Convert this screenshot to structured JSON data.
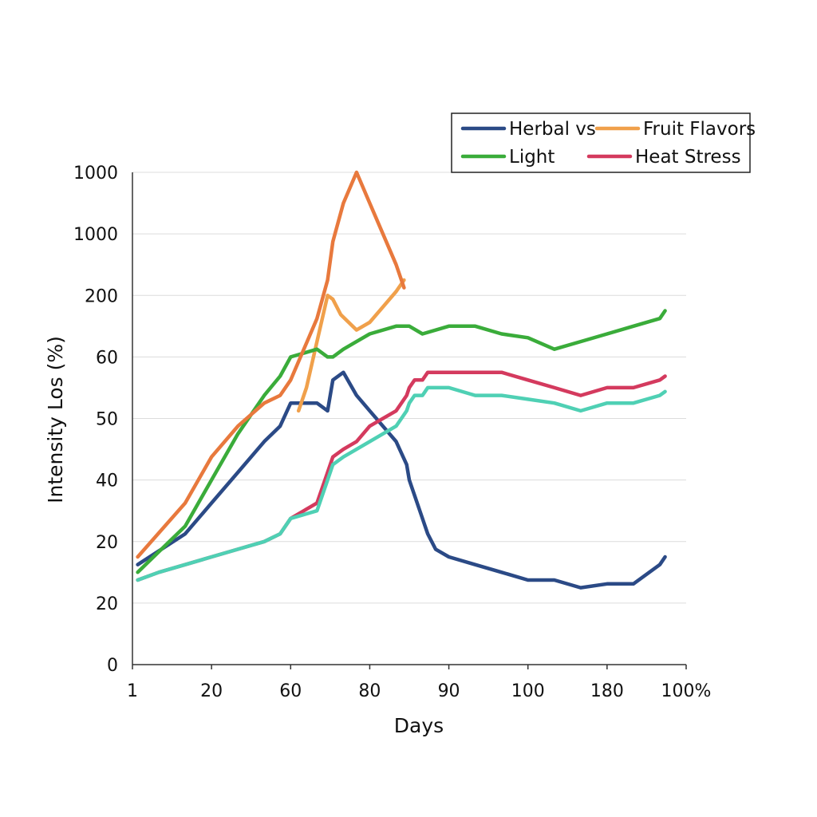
{
  "chart_data": {
    "type": "line",
    "title": "",
    "xlabel": "Days",
    "ylabel": "Intensity Los (%)",
    "x_ticks": [
      "1",
      "20",
      "60",
      "80",
      "90",
      "100",
      "180",
      "100%"
    ],
    "y_ticks": [
      "0",
      "20",
      "20",
      "40",
      "50",
      "60",
      "200",
      "1000",
      "1000"
    ],
    "grid": true,
    "legend_position": "top-right",
    "series": [
      {
        "name": "Herbal vs",
        "color": "#2b4a86",
        "points": [
          [
            0.2,
            13
          ],
          [
            2,
            17
          ],
          [
            3,
            21
          ],
          [
            4,
            25
          ],
          [
            5,
            29
          ],
          [
            5.6,
            31
          ],
          [
            6,
            34
          ],
          [
            7,
            34
          ],
          [
            7.4,
            33
          ],
          [
            7.6,
            37
          ],
          [
            8,
            38
          ],
          [
            8.5,
            35
          ],
          [
            9,
            33
          ],
          [
            10,
            29
          ],
          [
            10.4,
            26
          ],
          [
            10.5,
            24
          ],
          [
            10.7,
            22
          ],
          [
            10.9,
            20
          ],
          [
            11,
            19
          ],
          [
            11.1,
            18
          ],
          [
            11.2,
            17
          ],
          [
            11.5,
            15
          ],
          [
            12,
            14
          ],
          [
            13,
            13
          ],
          [
            14,
            12
          ],
          [
            15,
            11
          ],
          [
            16,
            11
          ],
          [
            17,
            10
          ],
          [
            18,
            10.5
          ],
          [
            19,
            10.5
          ],
          [
            20,
            13
          ],
          [
            20.2,
            14
          ]
        ]
      },
      {
        "name": "Fruit Flavors",
        "color": "#f0a04b",
        "points": [
          [
            6.3,
            33
          ],
          [
            6.6,
            36
          ],
          [
            7,
            42
          ],
          [
            7.4,
            48
          ],
          [
            7.6,
            47.5
          ],
          [
            7.9,
            45.5
          ],
          [
            8.5,
            43.5
          ],
          [
            9,
            44.5
          ],
          [
            10,
            48.5
          ],
          [
            10.3,
            50
          ]
        ]
      },
      {
        "name": "Light",
        "color": "#3aac3a",
        "points": [
          [
            0.2,
            12
          ],
          [
            2,
            18
          ],
          [
            3,
            24
          ],
          [
            4,
            30
          ],
          [
            5,
            35
          ],
          [
            5.6,
            37.5
          ],
          [
            6,
            40
          ],
          [
            7,
            41
          ],
          [
            7.4,
            40
          ],
          [
            7.6,
            40
          ],
          [
            8,
            41
          ],
          [
            8.5,
            42
          ],
          [
            9,
            43
          ],
          [
            10,
            44
          ],
          [
            10.5,
            44
          ],
          [
            11,
            43
          ],
          [
            12,
            44
          ],
          [
            13,
            44
          ],
          [
            14,
            43
          ],
          [
            15,
            42.5
          ],
          [
            16,
            41
          ],
          [
            17,
            42
          ],
          [
            18,
            43
          ],
          [
            19,
            44
          ],
          [
            20,
            45
          ],
          [
            20.2,
            46
          ]
        ]
      },
      {
        "name": "Heat Stress",
        "color": "#d43a5e",
        "points": [
          [
            0.2,
            11
          ],
          [
            1,
            12
          ],
          [
            2,
            13
          ],
          [
            3,
            14
          ],
          [
            4,
            15
          ],
          [
            5,
            16
          ],
          [
            5.6,
            17
          ],
          [
            6,
            19
          ],
          [
            7,
            21
          ],
          [
            7.4,
            25
          ],
          [
            7.6,
            27
          ],
          [
            8,
            28
          ],
          [
            8.5,
            29
          ],
          [
            9,
            31
          ],
          [
            10,
            33
          ],
          [
            10.4,
            35
          ],
          [
            10.5,
            36
          ],
          [
            10.7,
            37
          ],
          [
            10.9,
            37
          ],
          [
            11,
            37
          ],
          [
            11.1,
            37.5
          ],
          [
            11.2,
            38
          ],
          [
            11.5,
            38
          ],
          [
            12,
            38
          ],
          [
            13,
            38
          ],
          [
            14,
            38
          ],
          [
            15,
            37
          ],
          [
            16,
            36
          ],
          [
            17,
            35
          ],
          [
            18,
            36
          ],
          [
            19,
            36
          ],
          [
            20,
            37
          ],
          [
            20.2,
            37.5
          ]
        ]
      },
      {
        "name": "",
        "color": "#e8793d",
        "points": [
          [
            0.2,
            14
          ],
          [
            2,
            21
          ],
          [
            3,
            27
          ],
          [
            4,
            31
          ],
          [
            5,
            34
          ],
          [
            5.6,
            35
          ],
          [
            6,
            37
          ],
          [
            7,
            45
          ],
          [
            7.4,
            50
          ],
          [
            7.6,
            55
          ],
          [
            8,
            60
          ],
          [
            8.5,
            64
          ],
          [
            9,
            60
          ],
          [
            10,
            52
          ],
          [
            10.3,
            49
          ]
        ]
      },
      {
        "name": "",
        "color": "#4fd0b4",
        "points": [
          [
            0.2,
            11
          ],
          [
            1,
            12
          ],
          [
            2,
            13
          ],
          [
            3,
            14
          ],
          [
            4,
            15
          ],
          [
            5,
            16
          ],
          [
            5.6,
            17
          ],
          [
            6,
            19
          ],
          [
            7,
            20
          ],
          [
            7.4,
            24
          ],
          [
            7.6,
            26
          ],
          [
            8,
            27
          ],
          [
            8.5,
            28
          ],
          [
            9,
            29
          ],
          [
            10,
            31
          ],
          [
            10.4,
            33
          ],
          [
            10.5,
            34
          ],
          [
            10.7,
            35
          ],
          [
            10.9,
            35
          ],
          [
            11,
            35
          ],
          [
            11.1,
            35.5
          ],
          [
            11.2,
            36
          ],
          [
            11.5,
            36
          ],
          [
            12,
            36
          ],
          [
            13,
            35
          ],
          [
            14,
            35
          ],
          [
            15,
            34.5
          ],
          [
            16,
            34
          ],
          [
            17,
            33
          ],
          [
            18,
            34
          ],
          [
            19,
            34
          ],
          [
            20,
            35
          ],
          [
            20.2,
            35.5
          ]
        ]
      }
    ]
  }
}
